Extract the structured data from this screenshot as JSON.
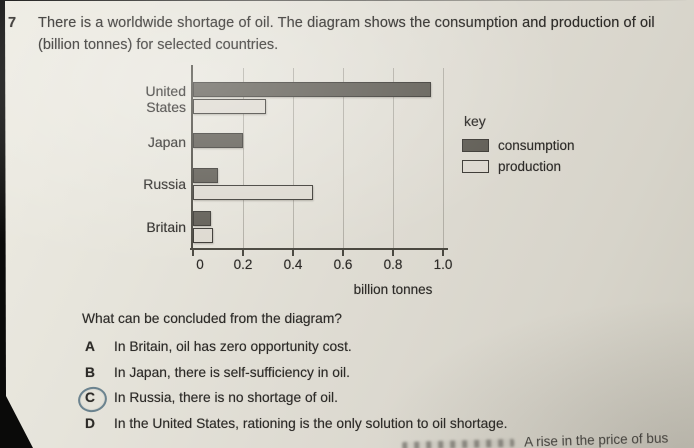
{
  "header": {
    "question_number": "7",
    "line1": "There is a worldwide shortage of oil. The diagram shows the consumption and production of oil",
    "line2": "(billion tonnes) for selected countries."
  },
  "chart_data": {
    "type": "bar",
    "orientation": "horizontal",
    "categories": [
      "United States",
      "Japan",
      "Russia",
      "Britain"
    ],
    "series": [
      {
        "name": "consumption",
        "values": [
          0.95,
          0.2,
          0.1,
          0.07
        ],
        "color": "#5e5b53"
      },
      {
        "name": "production",
        "values": [
          0.29,
          0.0,
          0.48,
          0.08
        ],
        "color": "#ddd9d0"
      }
    ],
    "xlabel": "billion tonnes",
    "xlim": [
      0,
      1.0
    ],
    "xtick_labels": [
      "0",
      "0.2",
      "0.4",
      "0.6",
      "0.8",
      "1.0"
    ],
    "grid": "vertical gridlines at each tick",
    "legend": {
      "title": "key",
      "entries": [
        "consumption",
        "production"
      ],
      "position": "right"
    }
  },
  "question": {
    "prompt": "What can be concluded from the diagram?",
    "options": [
      {
        "letter": "A",
        "text": "In Britain, oil has zero opportunity cost.",
        "circled": false
      },
      {
        "letter": "B",
        "text": "In Japan, there is self-sufficiency in oil.",
        "circled": false
      },
      {
        "letter": "C",
        "text": "In Russia, there is no shortage of oil.",
        "circled": true
      },
      {
        "letter": "D",
        "text": "In the United States, rationing is the only solution to oil shortage.",
        "circled": false
      }
    ]
  },
  "page_bottom": {
    "cutoff_fragment": "A rise in the price of bus"
  },
  "colors": {
    "background": "#0a0a09",
    "paper": "#e0ddd4",
    "ink": "#2d2b28",
    "bar_border": "#3a3833",
    "consumption_fill": "#5e5b53",
    "production_fill": "#ddd9d0",
    "axis": "#4a4840",
    "gridline": "#b2afa6",
    "pen_circle": "#49687a"
  }
}
